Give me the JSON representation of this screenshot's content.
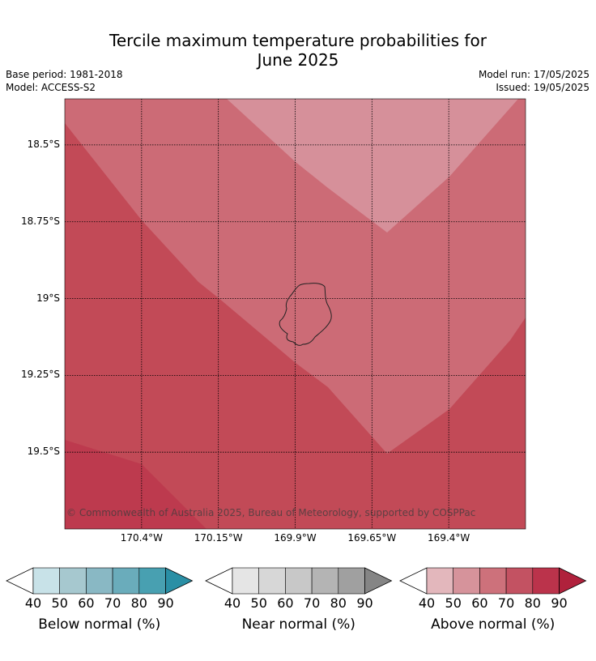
{
  "title_line1": "Tercile maximum temperature probabilities for",
  "title_line2": "June 2025",
  "base_period": "Base period: 1981-2018",
  "model": "Model: ACCESS-S2",
  "model_run": "Model run: 17/05/2025",
  "issued": "Issued: 19/05/2025",
  "copyright": "© Commonwealth of Australia 2025, Bureau of Meteorology, supported by COSPPac",
  "map": {
    "lat_labels": [
      "18.5°S",
      "18.75°S",
      "19°S",
      "19.25°S",
      "19.5°S"
    ],
    "lon_labels": [
      "170.4°W",
      "170.15°W",
      "169.9°W",
      "169.65°W",
      "169.4°W"
    ],
    "lat_values": [
      -18.5,
      -18.75,
      -19.0,
      -19.25,
      -19.5
    ],
    "lon_values": [
      -170.4,
      -170.15,
      -169.9,
      -169.65,
      -169.4
    ],
    "extent": {
      "lon_min": -170.65,
      "lon_max": -169.15,
      "lat_max": -18.35,
      "lat_min": -19.75
    },
    "island": "Niue",
    "zone_colors": {
      "above_50": "#d6909a",
      "above_60": "#cc6b76",
      "above_70": "#c24a57",
      "above_80": "#bd3a4e"
    }
  },
  "colorbars": [
    {
      "name": "below",
      "title": "Below normal (%)",
      "ticks": [
        "40",
        "50",
        "60",
        "70",
        "80",
        "90"
      ],
      "colors": [
        "#c8e2e8",
        "#a6c8cf",
        "#89b8c4",
        "#6aacbb",
        "#48a0b1",
        "#2a8fa5"
      ]
    },
    {
      "name": "near",
      "title": "Near normal (%)",
      "ticks": [
        "40",
        "50",
        "60",
        "70",
        "80",
        "90"
      ],
      "colors": [
        "#e5e5e5",
        "#d7d7d7",
        "#c8c8c8",
        "#b4b4b4",
        "#a0a0a0",
        "#858585"
      ]
    },
    {
      "name": "above",
      "title": "Above normal (%)",
      "ticks": [
        "40",
        "50",
        "60",
        "70",
        "80",
        "90"
      ],
      "colors": [
        "#e3b7bc",
        "#d6939b",
        "#cd717b",
        "#c35262",
        "#bb334b",
        "#b0213c"
      ]
    }
  ]
}
